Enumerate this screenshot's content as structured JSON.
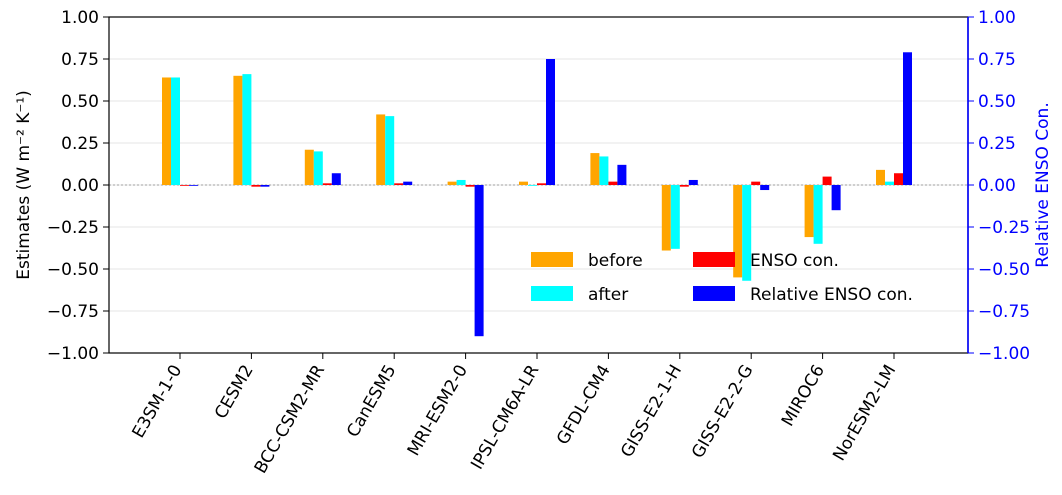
{
  "chart_data": {
    "type": "bar",
    "categories": [
      "E3SM-1-0",
      "CESM2",
      "BCC-CSM2-MR",
      "CanESM5",
      "MRI-ESM2-0",
      "IPSL-CM6A-LR",
      "GFDL-CM4",
      "GISS-E2-1-H",
      "GISS-E2-2-G",
      "MIROC6",
      "NorESM2-LM"
    ],
    "series": [
      {
        "name": "before",
        "axis": "left",
        "color": "#FFA500",
        "values": [
          0.64,
          0.65,
          0.21,
          0.42,
          0.02,
          0.02,
          0.19,
          -0.39,
          -0.55,
          -0.31,
          0.09
        ]
      },
      {
        "name": "after",
        "axis": "left",
        "color": "#00FFFF",
        "values": [
          0.64,
          0.66,
          0.2,
          0.41,
          0.03,
          0.0,
          0.17,
          -0.38,
          -0.57,
          -0.35,
          0.02
        ]
      },
      {
        "name": "ENSO con.",
        "axis": "left",
        "color": "#FF0000",
        "values": [
          0.0,
          -0.01,
          0.01,
          0.01,
          -0.01,
          0.01,
          0.02,
          -0.01,
          0.02,
          0.05,
          0.07
        ]
      },
      {
        "name": "Relative ENSO con.",
        "axis": "right",
        "color": "#0000FF",
        "values": [
          0.0,
          -0.01,
          0.07,
          0.02,
          -0.9,
          0.75,
          0.12,
          0.03,
          -0.03,
          -0.15,
          0.79
        ]
      }
    ],
    "ylabel": "Estimates (W m⁻² K⁻¹)",
    "ylabel_right": "Relative ENSO Con.",
    "ylim": [
      -1.0,
      1.0
    ],
    "ylim_right": [
      -1.0,
      1.0
    ],
    "yticks": [
      "1.00",
      "0.75",
      "0.50",
      "0.25",
      "0.00",
      "−0.25",
      "−0.50",
      "−0.75",
      "−1.00"
    ],
    "yticks_right": [
      "1.00",
      "0.75",
      "0.50",
      "0.25",
      "0.00",
      "−0.25",
      "−0.50",
      "−0.75",
      "−1.00"
    ],
    "grid": true,
    "zero_line": true,
    "legend_placement": "lower-right",
    "right_axis_color": "#0000FF"
  }
}
